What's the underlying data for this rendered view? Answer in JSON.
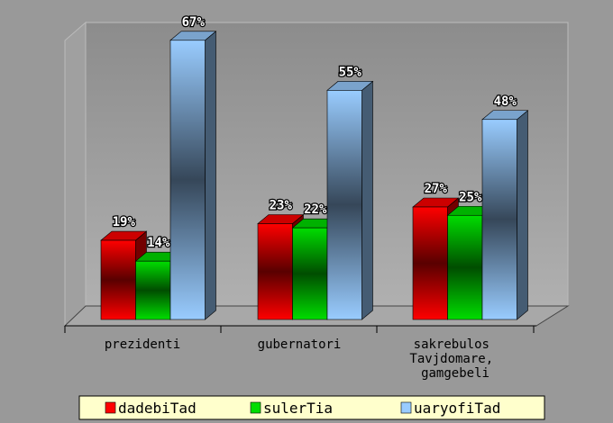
{
  "chart_data": {
    "type": "bar3d",
    "categories": [
      "prezidenti",
      "gubernatori",
      "sakrebulos Tavjdomare, gamgebeli"
    ],
    "series": [
      {
        "name": "dadebiTad",
        "color": "#ff0000",
        "values": [
          19,
          23,
          27
        ],
        "value_labels": [
          "19%",
          "23%",
          "27%"
        ]
      },
      {
        "name": "sulerTia",
        "color": "#00dd00",
        "values": [
          14,
          22,
          25
        ],
        "value_labels": [
          "14%",
          "22%",
          "25%"
        ]
      },
      {
        "name": "uaryofiTad",
        "color": "#99ccff",
        "values": [
          67,
          55,
          48
        ],
        "value_labels": [
          "67%",
          "55%",
          "48%"
        ]
      }
    ],
    "legend": "bottom"
  }
}
